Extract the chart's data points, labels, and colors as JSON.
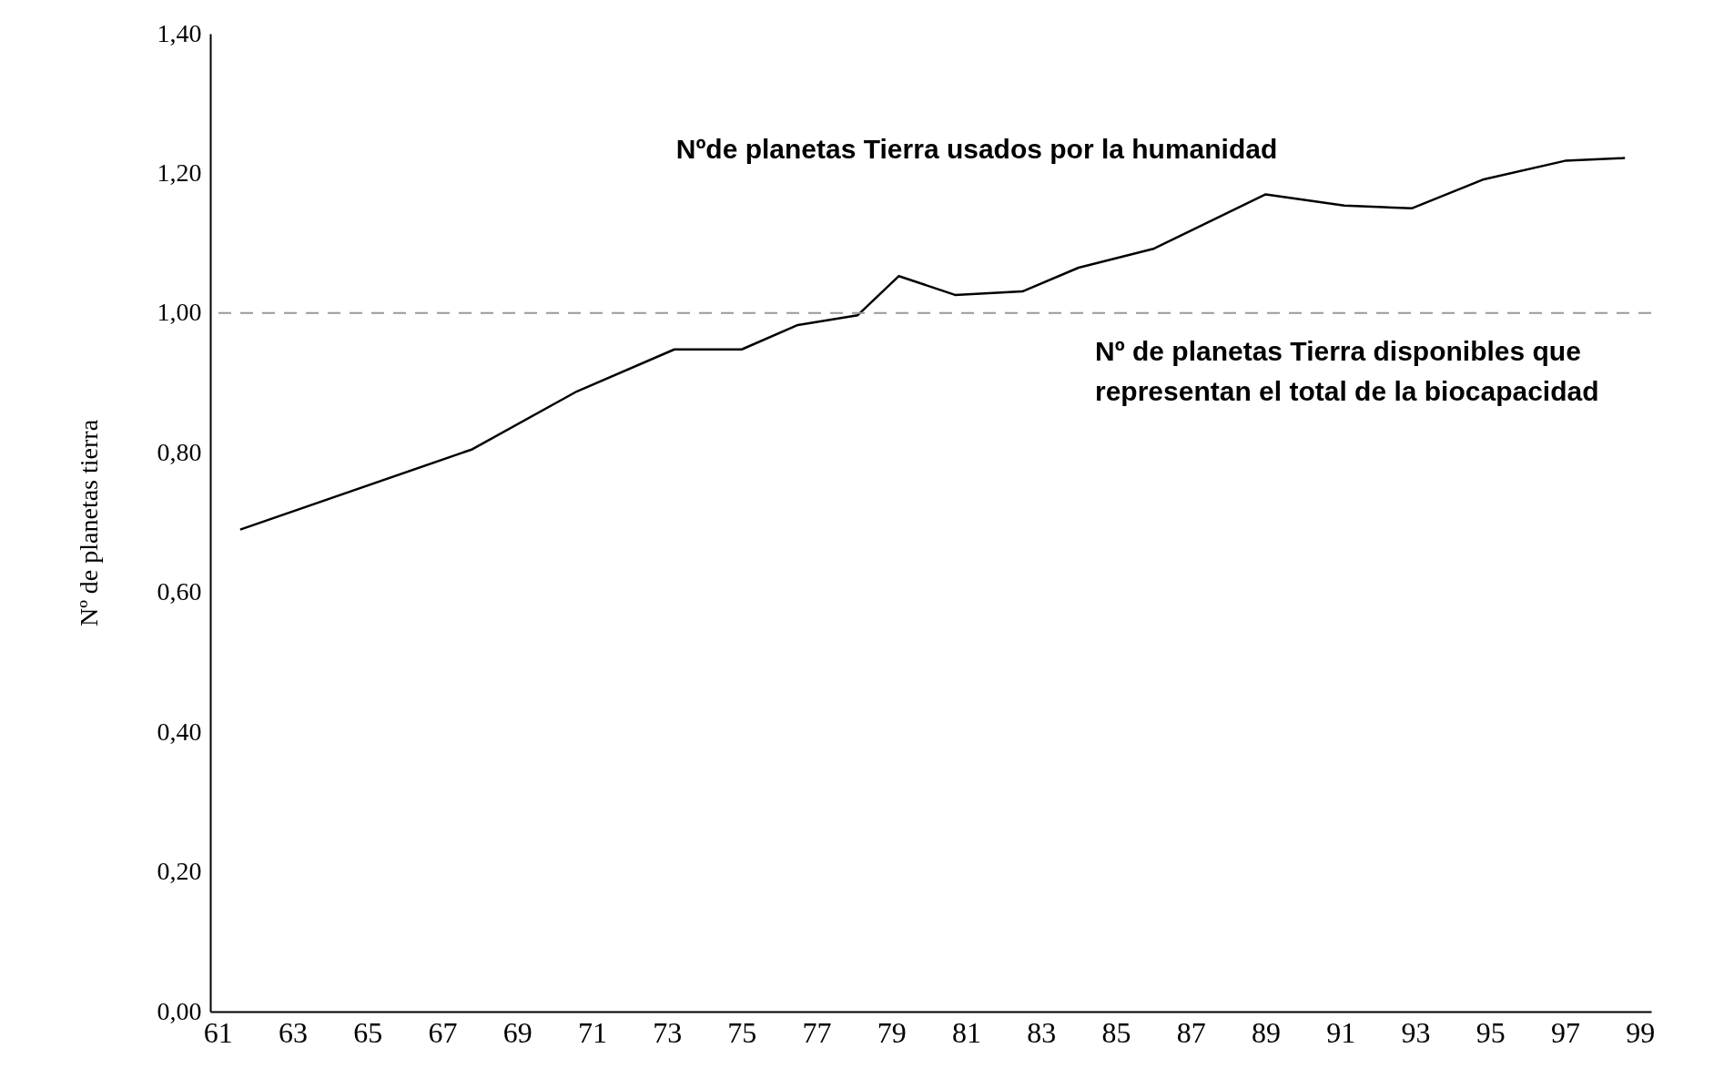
{
  "chart_data": {
    "type": "line",
    "ylabel": "Nº de planetas tierra",
    "x": [
      61.6,
      67.8,
      70.6,
      73.2,
      75.0,
      76.5,
      78.1,
      79.2,
      80.7,
      82.5,
      84.0,
      86.0,
      89.0,
      91.1,
      92.9,
      94.8,
      97.0,
      98.6
    ],
    "series": [
      {
        "color": "#000000",
        "values": [
          0.69,
          0.805,
          0.888,
          0.948,
          0.948,
          0.983,
          0.997,
          1.053,
          1.026,
          1.031,
          1.065,
          1.092,
          1.17,
          1.154,
          1.15,
          1.191,
          1.218,
          1.222
        ]
      }
    ],
    "xlim": [
      60.8,
      99.3
    ],
    "xticks": [
      61,
      63,
      65,
      67,
      69,
      71,
      73,
      75,
      77,
      79,
      81,
      83,
      85,
      87,
      89,
      91,
      93,
      95,
      97,
      99
    ],
    "ylim": [
      0,
      1.4
    ],
    "yticks": [
      {
        "value": 0,
        "label": "0,00"
      },
      {
        "value": 0.2,
        "label": "0,20"
      },
      {
        "value": 0.4,
        "label": "0,40"
      },
      {
        "value": 0.6,
        "label": "0,60"
      },
      {
        "value": 0.8,
        "label": "0,80"
      },
      {
        "value": 1.0,
        "label": "1,00"
      },
      {
        "value": 1.2,
        "label": "1,20"
      },
      {
        "value": 1.4,
        "label": "1,40"
      }
    ],
    "ref_lines": [
      {
        "axis": "y",
        "value": 1.0,
        "label": "Nº de planetas Tierra disponibles que\nrepresentan el total de la biocapacidad",
        "color": "#999999",
        "line_style": "dashed"
      }
    ],
    "annotations": [
      "Nºde planetas Tierra usados por la humanidad"
    ],
    "grid": false,
    "marker": "none",
    "line_style": "solid"
  }
}
